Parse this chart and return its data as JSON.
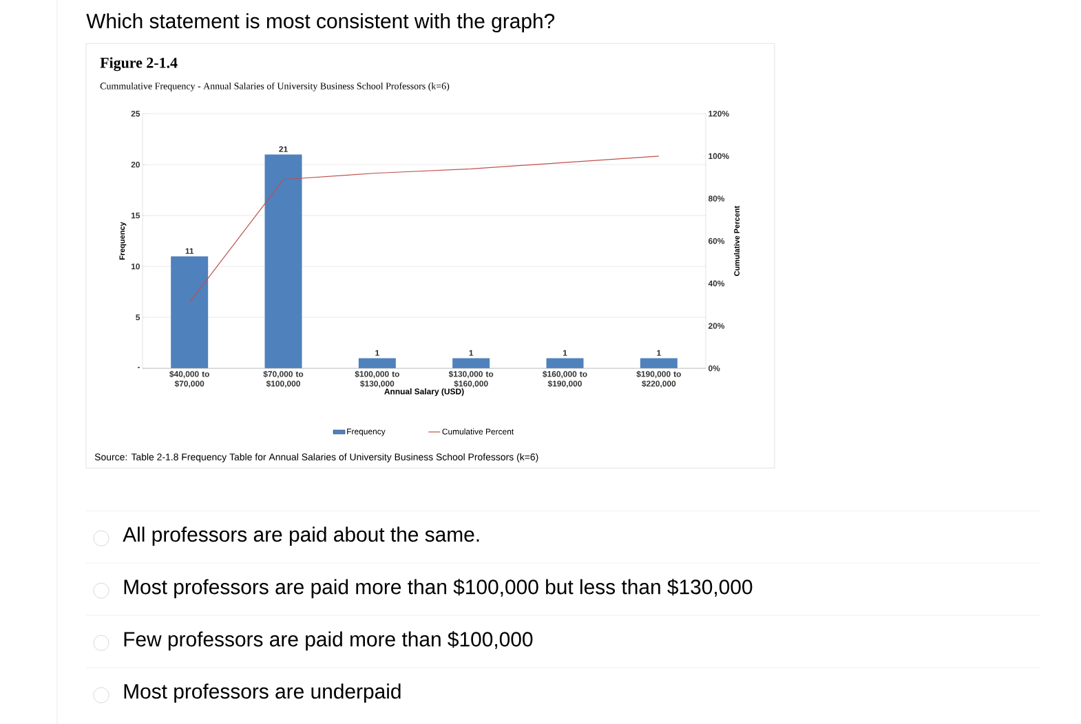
{
  "chart_data": {
    "type": "bar",
    "title": "Figure 2-1.4",
    "subtitle": "Cummulative Frequency - Annual Salaries of University Business School Professors (k=6)",
    "categories": [
      "$40,000 to $70,000",
      "$70,000 to $100,000",
      "$100,000 to $130,000",
      "$130,000 to $160,000",
      "$160,000 to $190,000",
      "$190,000 to $220,000"
    ],
    "series": [
      {
        "name": "Frequency",
        "color": "#4f81bd",
        "values": [
          11,
          21,
          1,
          1,
          1,
          1
        ],
        "value_labels": [
          "11",
          "21",
          "1",
          "1",
          "1",
          "1"
        ]
      },
      {
        "name": "Cumulative Percent",
        "type": "line",
        "axis": "y2",
        "color": "#c0504d",
        "values": [
          31,
          89,
          92,
          94,
          97,
          100
        ]
      }
    ],
    "xlabel": "Annual Salary (USD)",
    "ylabel": "Frequency",
    "y2label": "Cumulative Percent",
    "ylim": [
      0,
      25
    ],
    "yticks": [
      {
        "value": 0,
        "label": "-"
      },
      5,
      10,
      15,
      20,
      25
    ],
    "y2lim": [
      0,
      120
    ],
    "y2ticks": [
      {
        "value": 0,
        "label": "0%"
      },
      {
        "value": 20,
        "label": "20%"
      },
      {
        "value": 40,
        "label": "40%"
      },
      {
        "value": 60,
        "label": "60%"
      },
      {
        "value": 80,
        "label": "80%"
      },
      {
        "value": 100,
        "label": "100%"
      },
      {
        "value": 120,
        "label": "120%"
      }
    ],
    "grid": "y",
    "legend": "bottom",
    "annotations": [
      "Source: Table 2-1.8 Frequency Table for Annual Salaries of University Business School Professors (k=6)",
      "Which statement is most consistent with the graph?",
      "All professors are paid about the same.",
      "Most professors are paid more than $100,000 but less than $130,000",
      "Few professors are paid more than $100,000",
      "Most professors are underpaid"
    ]
  }
}
